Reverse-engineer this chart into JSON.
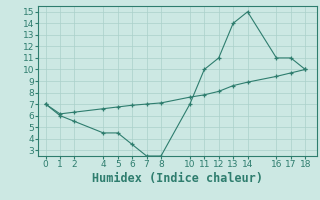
{
  "line1_x": [
    0,
    1,
    2,
    4,
    5,
    6,
    7,
    8,
    10,
    11,
    12,
    13,
    14,
    16,
    17,
    18
  ],
  "line1_y": [
    7,
    6,
    5.5,
    4.5,
    4.5,
    3.5,
    2.5,
    2.5,
    7,
    10,
    11,
    14,
    15,
    11,
    11,
    10
  ],
  "line2_x": [
    0,
    1,
    2,
    4,
    5,
    6,
    7,
    8,
    10,
    11,
    12,
    13,
    14,
    16,
    17,
    18
  ],
  "line2_y": [
    7,
    6.15,
    6.3,
    6.6,
    6.75,
    6.9,
    7.0,
    7.1,
    7.6,
    7.8,
    8.1,
    8.6,
    8.9,
    9.4,
    9.7,
    10
  ],
  "line_color": "#2e7d6e",
  "bg_color": "#cce8e3",
  "xlabel": "Humidex (Indice chaleur)",
  "xlim": [
    -0.5,
    18.8
  ],
  "ylim": [
    2.5,
    15.5
  ],
  "xticks": [
    0,
    1,
    2,
    4,
    5,
    6,
    7,
    8,
    10,
    11,
    12,
    13,
    14,
    16,
    17,
    18
  ],
  "yticks": [
    3,
    4,
    5,
    6,
    7,
    8,
    9,
    10,
    11,
    12,
    13,
    14,
    15
  ],
  "grid_color": "#aad0ca",
  "tick_fontsize": 6.5,
  "xlabel_fontsize": 8.5
}
